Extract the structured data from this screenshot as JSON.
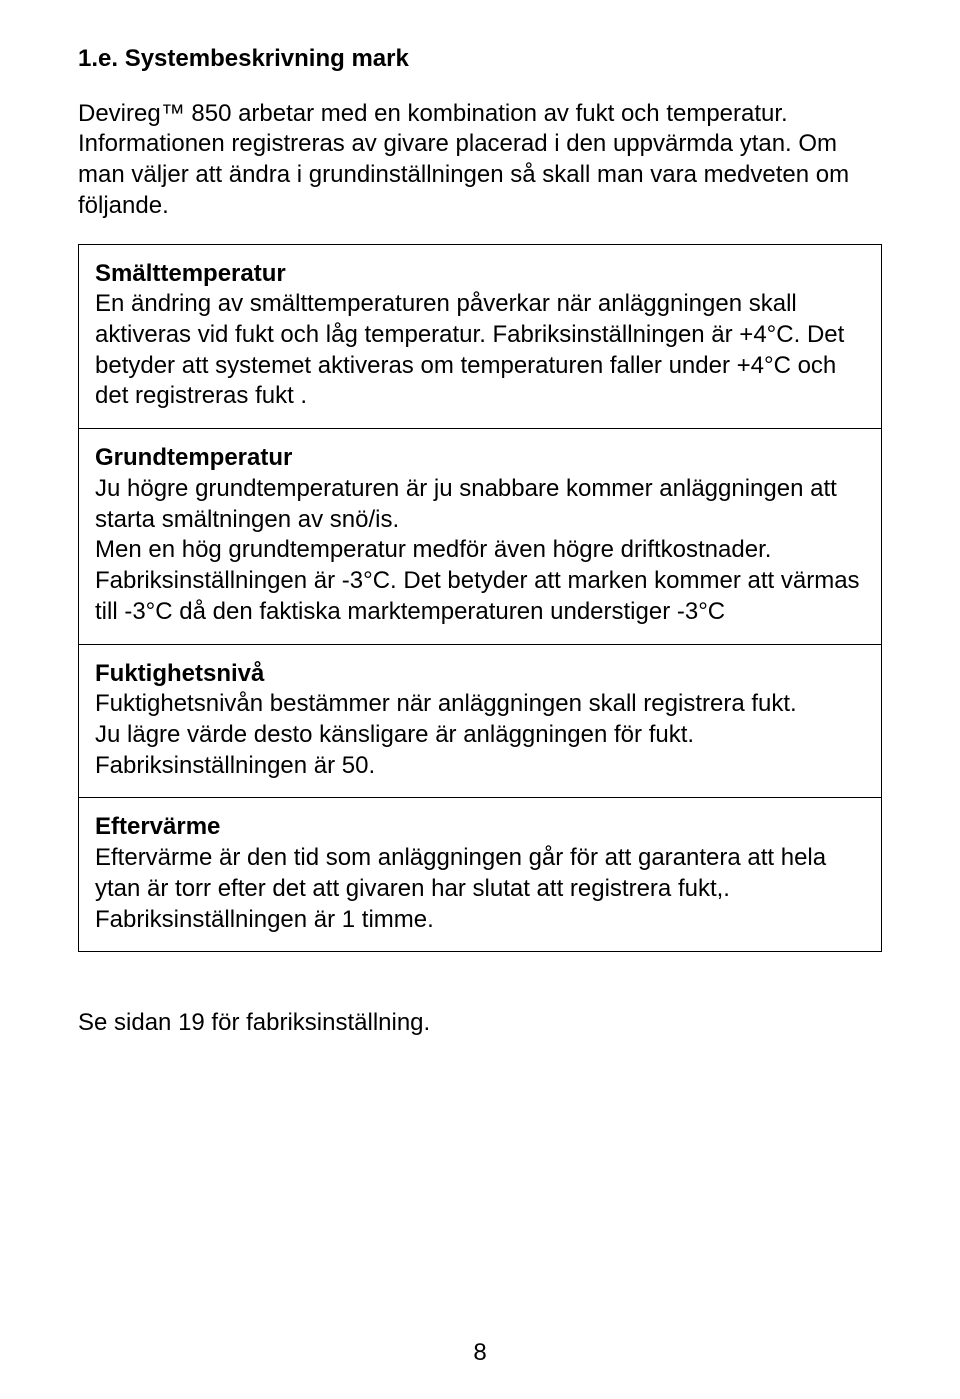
{
  "heading": "1.e. Systembeskrivning mark",
  "intro": "Devireg™ 850 arbetar med en kombination av fukt och temperatur. Informationen registreras av givare placerad i den uppvärmda ytan. Om man väljer att ändra i grundinställningen så skall man vara medveten om följande.",
  "sections": [
    {
      "title": "Smälttemperatur",
      "body": "En ändring av smälttemperaturen påverkar när anläggningen skall aktiveras vid fukt och låg temperatur. Fabriksinställningen är +4°C. Det betyder att systemet aktiveras om temperaturen faller under +4°C och det registreras fukt ."
    },
    {
      "title": "Grundtemperatur",
      "body": "Ju högre grundtemperaturen är ju snabbare kommer anläggningen att starta smältningen av snö/is.\nMen en hög grundtemperatur medför även högre driftkostnader. Fabriksinställningen är -3°C. Det betyder att marken kommer att värmas till -3°C då den faktiska marktemperaturen understiger -3°C"
    },
    {
      "title": "Fuktighetsnivå",
      "body": "Fuktighetsnivån bestämmer när anläggningen skall registrera fukt.\nJu lägre värde desto känsligare är anläggningen för fukt. Fabriksinställningen är 50."
    },
    {
      "title": "Eftervärme",
      "body": "Eftervärme är den tid som anläggningen går för att garantera att hela ytan är torr efter det att givaren har slutat att registrera fukt,. Fabriksinställningen är 1 timme."
    }
  ],
  "footer": "Se sidan 19 för fabriksinställning.",
  "pageNumber": "8"
}
